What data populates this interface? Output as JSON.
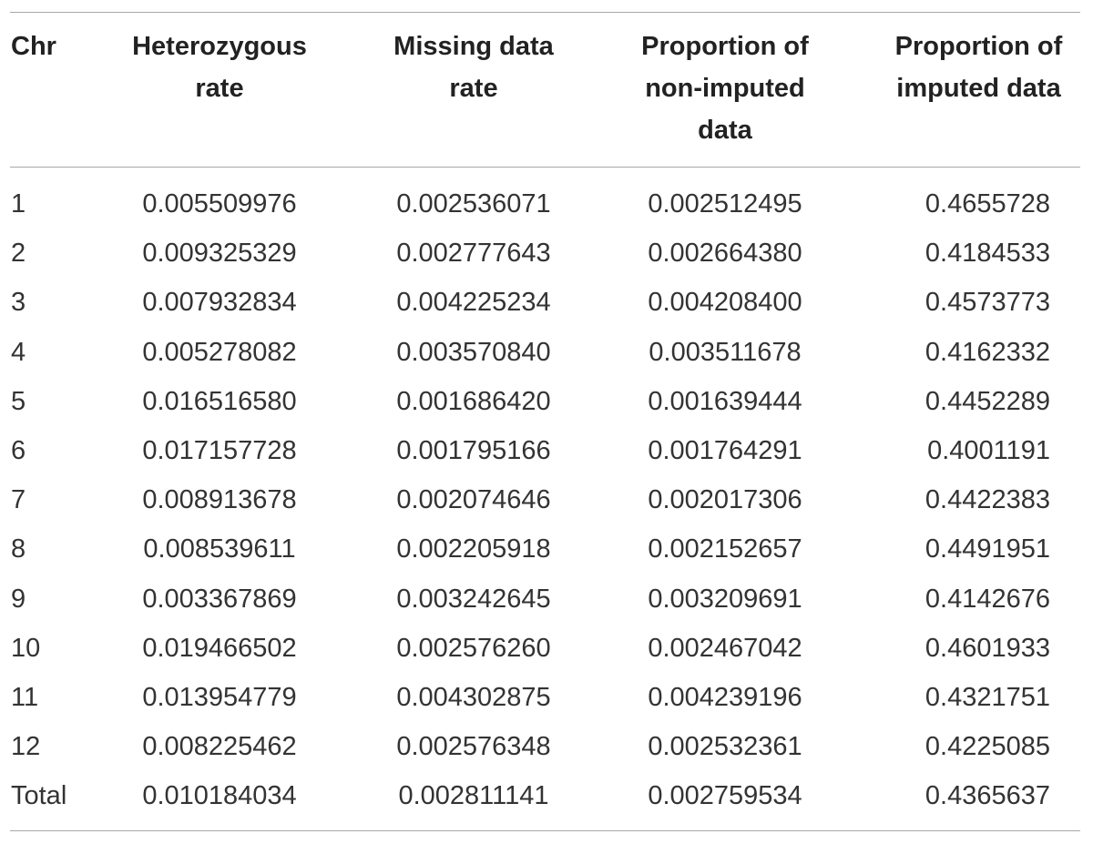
{
  "table": {
    "headers": [
      "Chr",
      "Heterozygous\nrate",
      "Missing data\nrate",
      "Proportion of\nnon-imputed\ndata",
      "Proportion of\nimputed data"
    ],
    "rows": [
      [
        "1",
        "0.005509976",
        "0.002536071",
        "0.002512495",
        "0.4655728"
      ],
      [
        "2",
        "0.009325329",
        "0.002777643",
        "0.002664380",
        "0.4184533"
      ],
      [
        "3",
        "0.007932834",
        "0.004225234",
        "0.004208400",
        "0.4573773"
      ],
      [
        "4",
        "0.005278082",
        "0.003570840",
        "0.003511678",
        "0.4162332"
      ],
      [
        "5",
        "0.016516580",
        "0.001686420",
        "0.001639444",
        "0.4452289"
      ],
      [
        "6",
        "0.017157728",
        "0.001795166",
        "0.001764291",
        "0.4001191"
      ],
      [
        "7",
        "0.008913678",
        "0.002074646",
        "0.002017306",
        "0.4422383"
      ],
      [
        "8",
        "0.008539611",
        "0.002205918",
        "0.002152657",
        "0.4491951"
      ],
      [
        "9",
        "0.003367869",
        "0.003242645",
        "0.003209691",
        "0.4142676"
      ],
      [
        "10",
        "0.019466502",
        "0.002576260",
        "0.002467042",
        "0.4601933"
      ],
      [
        "11",
        "0.013954779",
        "0.004302875",
        "0.004239196",
        "0.4321751"
      ],
      [
        "12",
        "0.008225462",
        "0.002576348",
        "0.002532361",
        "0.4225085"
      ],
      [
        "Total",
        "0.010184034",
        "0.002811141",
        "0.002759534",
        "0.4365637"
      ]
    ]
  },
  "colors": {
    "rule": "#a8a8a8",
    "text": "#333333",
    "header_text": "#222222"
  }
}
